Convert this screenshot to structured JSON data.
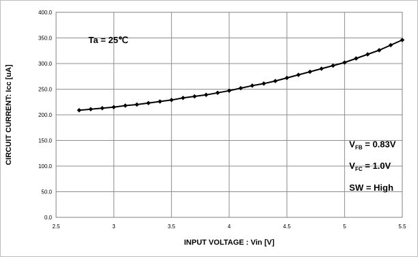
{
  "chart_data": {
    "type": "line",
    "xlabel": "INPUT VOLTAGE : Vin [V]",
    "ylabel": "CIRCUIT CURRENT: Icc [uA]",
    "xlim": [
      2.5,
      5.5
    ],
    "ylim": [
      0.0,
      400.0
    ],
    "x_ticks": [
      "2.5",
      "3",
      "3.5",
      "4",
      "4.5",
      "5",
      "5.5"
    ],
    "y_ticks": [
      "0.0",
      "50.0",
      "100.0",
      "150.0",
      "200.0",
      "250.0",
      "300.0",
      "350.0",
      "400.0"
    ],
    "grid": true,
    "series": [
      {
        "x": [
          2.7,
          2.8,
          2.9,
          3.0,
          3.1,
          3.2,
          3.3,
          3.4,
          3.5,
          3.6,
          3.7,
          3.8,
          3.9,
          4.0,
          4.1,
          4.2,
          4.3,
          4.4,
          4.5,
          4.6,
          4.7,
          4.8,
          4.9,
          5.0,
          5.1,
          5.2,
          5.3,
          5.4,
          5.5
        ],
        "values": [
          209,
          211,
          213,
          215,
          218,
          220,
          223,
          226,
          229,
          233,
          236,
          239,
          243,
          247,
          252,
          257,
          261,
          266,
          272,
          278,
          284,
          290,
          296,
          302,
          310,
          318,
          326,
          336,
          346
        ],
        "color": "#000000"
      }
    ],
    "annotations": {
      "ta": {
        "text": "Ta = 25℃"
      },
      "vfb": {
        "main": "V",
        "sub": "FB",
        "rest": " = 0.83V"
      },
      "vfc": {
        "main": "V",
        "sub": "FC",
        "rest": " = 1.0V"
      },
      "sw": {
        "text": "SW  = High"
      }
    }
  }
}
